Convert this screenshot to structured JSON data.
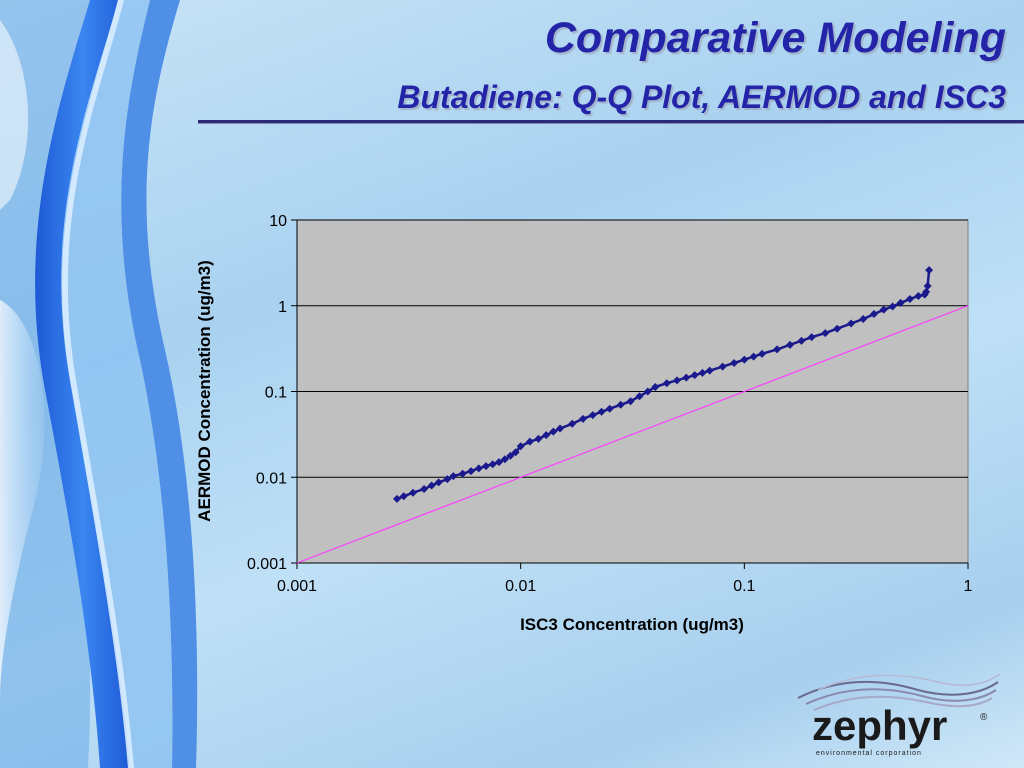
{
  "slide": {
    "title": "Comparative Modeling",
    "subtitle": "Butadiene: Q-Q Plot, AERMOD and ISC3"
  },
  "logo": {
    "name": "zephyr",
    "registered": "®",
    "tagline": "environmental corporation"
  },
  "colors": {
    "title": "#2424a8",
    "plot_background": "#c0c0c0",
    "series": "#1a1a8c",
    "reference_line": "#ff3cff",
    "gridline": "#000000"
  },
  "chart_data": {
    "type": "scatter",
    "title": "",
    "xlabel": "ISC3 Concentration (ug/m3)",
    "ylabel": "AERMOD Concentration (ug/m3)",
    "xscale": "log",
    "yscale": "log",
    "xlim": [
      0.001,
      1
    ],
    "ylim": [
      0.001,
      10
    ],
    "xticks": [
      "0.001",
      "0.01",
      "0.1",
      "1"
    ],
    "yticks": [
      "0.001",
      "0.01",
      "0.1",
      "1",
      "10"
    ],
    "grid": "horizontal",
    "legend": "none",
    "series": [
      {
        "marker": "diamond",
        "x": [
          0.0028,
          0.003,
          0.0033,
          0.0037,
          0.004,
          0.0043,
          0.0047,
          0.005,
          0.0055,
          0.006,
          0.0065,
          0.007,
          0.0075,
          0.008,
          0.0085,
          0.009,
          0.0095,
          0.01,
          0.011,
          0.012,
          0.013,
          0.014,
          0.015,
          0.017,
          0.019,
          0.021,
          0.023,
          0.025,
          0.028,
          0.031,
          0.034,
          0.037,
          0.04,
          0.045,
          0.05,
          0.055,
          0.06,
          0.065,
          0.07,
          0.08,
          0.09,
          0.1,
          0.11,
          0.12,
          0.14,
          0.16,
          0.18,
          0.2,
          0.23,
          0.26,
          0.3,
          0.34,
          0.38,
          0.42,
          0.46,
          0.5,
          0.55,
          0.6,
          0.64,
          0.65,
          0.66,
          0.67
        ],
        "y": [
          0.0056,
          0.006,
          0.0066,
          0.0073,
          0.008,
          0.0087,
          0.0095,
          0.0103,
          0.011,
          0.0118,
          0.0127,
          0.0135,
          0.0142,
          0.015,
          0.0162,
          0.0178,
          0.0196,
          0.023,
          0.026,
          0.028,
          0.031,
          0.034,
          0.037,
          0.042,
          0.048,
          0.053,
          0.058,
          0.063,
          0.07,
          0.077,
          0.088,
          0.1,
          0.113,
          0.125,
          0.135,
          0.145,
          0.155,
          0.165,
          0.175,
          0.195,
          0.215,
          0.235,
          0.255,
          0.275,
          0.31,
          0.35,
          0.39,
          0.43,
          0.48,
          0.54,
          0.62,
          0.7,
          0.8,
          0.9,
          0.98,
          1.08,
          1.2,
          1.3,
          1.35,
          1.45,
          1.7,
          2.6
        ]
      }
    ],
    "reference_line": {
      "x": [
        0.001,
        1
      ],
      "y": [
        0.001,
        1
      ]
    }
  }
}
